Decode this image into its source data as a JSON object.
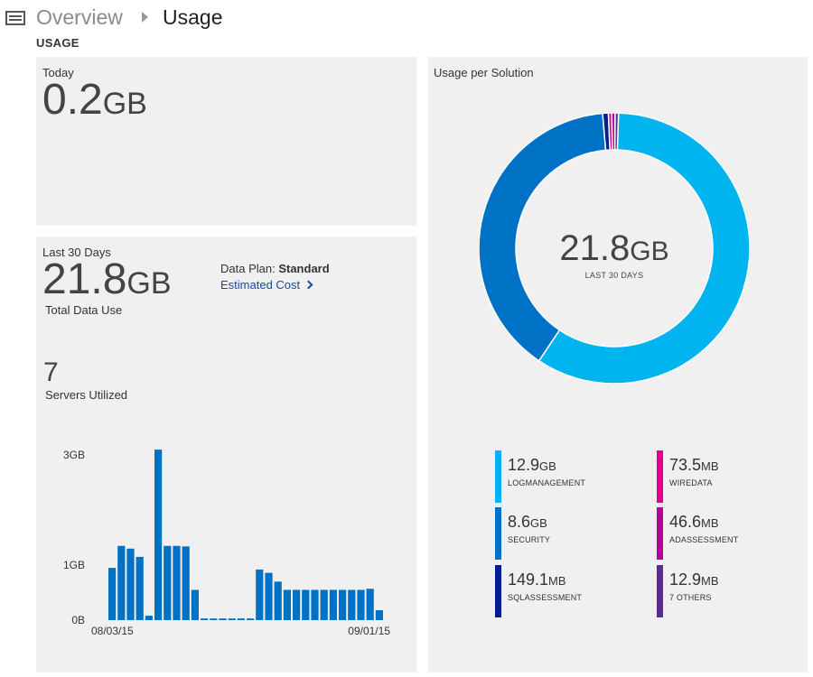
{
  "header": {
    "menu_icon": "menu-icon",
    "crumb_overview": "Overview",
    "crumb_usage": "Usage"
  },
  "section_title": "USAGE",
  "today": {
    "label": "Today",
    "value": "0.2",
    "unit": "GB"
  },
  "last30": {
    "label": "Last 30 Days",
    "value": "21.8",
    "unit": "GB",
    "caption": "Total Data Use",
    "plan_label": "Data Plan:",
    "plan_value": "Standard",
    "cost_link": "Estimated Cost",
    "servers_value": "7",
    "servers_label": "Servers Utilized"
  },
  "solution": {
    "title": "Usage per Solution",
    "center_value": "21.8",
    "center_unit": "GB",
    "center_label": "LAST 30 DAYS",
    "legend": [
      {
        "value": "12.9",
        "unit": "GB",
        "name": "LOGMANAGEMENT",
        "color": "#00b4f0"
      },
      {
        "value": "73.5",
        "unit": "MB",
        "name": "WIREDATA",
        "color": "#e3008c"
      },
      {
        "value": "8.6",
        "unit": "GB",
        "name": "SECURITY",
        "color": "#0072c6"
      },
      {
        "value": "46.6",
        "unit": "MB",
        "name": "ADASSESSMENT",
        "color": "#b4009e"
      },
      {
        "value": "149.1",
        "unit": "MB",
        "name": "SQLASSESSMENT",
        "color": "#001e8c"
      },
      {
        "value": "12.9",
        "unit": "MB",
        "name": "7 OTHERS",
        "color": "#5c2d91"
      }
    ]
  },
  "chart_data": [
    {
      "type": "bar",
      "title": "",
      "xlabel": "",
      "ylabel": "",
      "y_ticks": [
        "0B",
        "1GB",
        "3GB"
      ],
      "x_tick_labels": [
        "08/03/15",
        "09/01/15"
      ],
      "ylim": [
        0,
        3.2
      ],
      "color": "#0072c6",
      "values": [
        0.95,
        1.35,
        1.3,
        1.15,
        0.08,
        3.1,
        1.35,
        1.35,
        1.34,
        0.55,
        0.03,
        0.03,
        0.03,
        0.03,
        0.03,
        0.03,
        0.92,
        0.86,
        0.7,
        0.55,
        0.55,
        0.55,
        0.55,
        0.55,
        0.55,
        0.55,
        0.55,
        0.55,
        0.57,
        0.18
      ]
    },
    {
      "type": "pie",
      "title": "Usage per Solution",
      "labels": [
        "LOGMANAGEMENT",
        "SECURITY",
        "SQLASSESSMENT",
        "WIREDATA",
        "ADASSESSMENT",
        "7 OTHERS"
      ],
      "values_mb": [
        12900,
        8600,
        149.1,
        73.5,
        46.6,
        12.9
      ],
      "colors": [
        "#00b4f0",
        "#0072c6",
        "#001e8c",
        "#e3008c",
        "#b4009e",
        "#5c2d91"
      ]
    }
  ]
}
